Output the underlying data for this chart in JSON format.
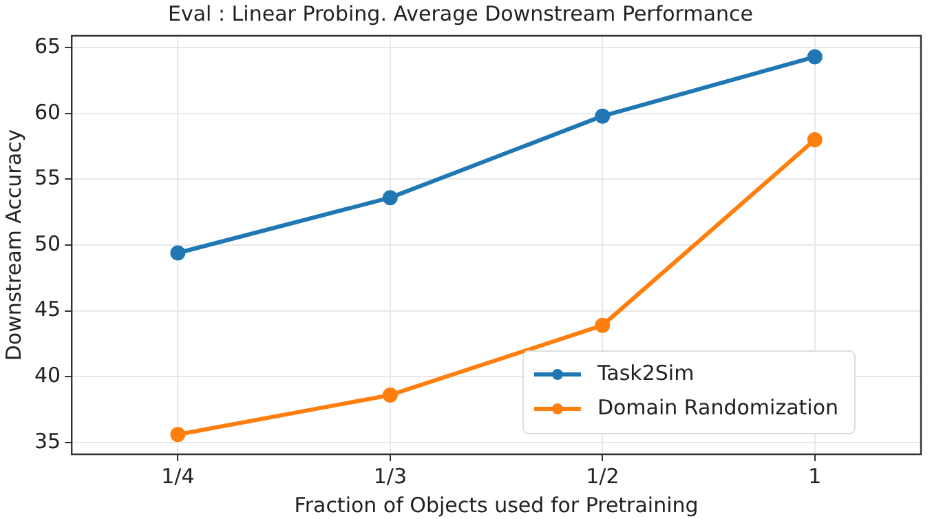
{
  "chart_data": {
    "type": "line",
    "title": "Eval : Linear Probing. Average Downstream Performance",
    "xlabel": "Fraction of Objects used for Pretraining",
    "ylabel": "Downstream Accuracy",
    "categories": [
      "1/4",
      "1/3",
      "1/2",
      "1"
    ],
    "series": [
      {
        "name": "Task2Sim",
        "color": "#1f77b4",
        "values": [
          49.4,
          53.6,
          59.8,
          64.3
        ]
      },
      {
        "name": "Domain Randomization",
        "color": "#ff7f0e",
        "values": [
          35.6,
          38.6,
          43.9,
          58.0
        ]
      }
    ],
    "ylim": [
      34.1,
      65.9
    ],
    "yticks": [
      35,
      40,
      45,
      50,
      55,
      60,
      65
    ],
    "grid": true,
    "legend": "bottom right",
    "marker": "circle",
    "line_style": "solid"
  }
}
